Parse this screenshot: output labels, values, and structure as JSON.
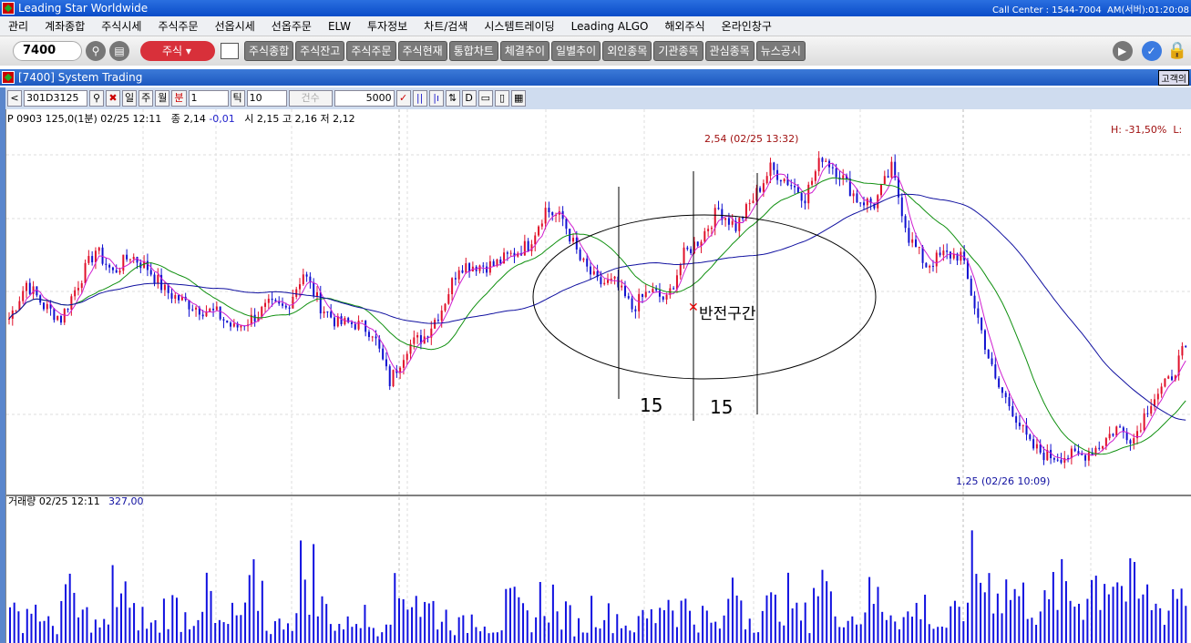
{
  "app": {
    "title": "Leading Star Worldwide",
    "call_center": "Call Center : 1544-7004  AM(서버):01:20:08"
  },
  "menu": [
    "관리",
    "계좌종합",
    "주식시세",
    "주식주문",
    "선옵시세",
    "선옵주문",
    "ELW",
    "투자정보",
    "차트/검색",
    "시스템트레이딩",
    "Leading ALGO",
    "해외주식",
    "온라인창구"
  ],
  "toolbar": {
    "screen_code": "7400",
    "market": "주식",
    "buttons": [
      "주식종합",
      "주식잔고",
      "주식주문",
      "주식현재",
      "통합차트",
      "체결추이",
      "일별추이",
      "외인종목",
      "기관종목",
      "관심종목",
      "뉴스공시"
    ]
  },
  "window": {
    "title": "[7400] System Trading",
    "customer_btn": "고객의"
  },
  "chart_toolbar": {
    "symbol": "301D3125",
    "periods": [
      "일",
      "주",
      "월",
      "분"
    ],
    "minute": "1",
    "tick_label": "틱",
    "tick": "10",
    "count_label": "건수",
    "count": "5000"
  },
  "info": {
    "name": "P 0903 125,0(1분) 02/25 12:11",
    "close": "종 2,14",
    "change": "-0,01",
    "rest": "시 2,15 고 2,16 저 2,12"
  },
  "labels": {
    "high": "2,54 (02/25 13:32)",
    "low": "1,25 (02/26 10:09)",
    "hl": "H: -31,50%  L:",
    "volume": "거래량 02/25 12:11",
    "volume_value": "327,00",
    "reversal": "반전구간",
    "span1": "15",
    "span2": "15"
  },
  "colors": {
    "up": "#e0102a",
    "down": "#1010d0",
    "ma5": "#d020d0",
    "ma20": "#109010",
    "ma60": "#1010a0",
    "volume": "#1010e0"
  },
  "chart_data": {
    "type": "candlestick",
    "ylim": [
      1.25,
      2.54
    ],
    "closes": [
      1.86,
      2.0,
      1.91,
      1.86,
      2.0,
      2.13,
      2.04,
      2.11,
      2.06,
      1.97,
      1.93,
      1.9,
      1.88,
      1.82,
      1.86,
      1.91,
      1.9,
      2.04,
      1.91,
      1.84,
      1.84,
      1.81,
      1.61,
      1.75,
      1.79,
      1.9,
      2.07,
      2.07,
      2.07,
      2.11,
      2.15,
      2.29,
      2.25,
      2.09,
      2.0,
      2.0,
      1.9,
      1.97,
      1.93,
      2.11,
      2.18,
      2.29,
      2.22,
      2.33,
      2.45,
      2.4,
      2.34,
      2.5,
      2.43,
      2.33,
      2.31,
      2.45,
      2.18,
      2.07,
      2.11,
      2.11,
      1.86,
      1.61,
      1.5,
      1.36,
      1.32,
      1.32,
      1.32,
      1.36,
      1.43,
      1.39,
      1.54,
      1.61,
      1.75
    ],
    "volume": [
      3,
      4,
      2,
      5,
      3,
      2,
      6,
      3,
      2,
      4,
      3,
      5,
      2,
      3,
      6,
      2,
      3,
      8,
      4,
      2,
      3,
      2,
      5,
      6,
      4,
      3,
      2,
      3,
      2,
      4,
      3,
      5,
      3,
      2,
      4,
      3,
      2,
      3,
      5,
      4,
      3,
      2,
      6,
      3,
      4,
      5,
      3,
      7,
      4,
      3,
      5,
      4,
      3,
      4,
      2,
      3,
      8,
      7,
      6,
      5,
      4,
      6,
      5,
      7,
      8,
      6,
      5,
      4,
      6
    ]
  }
}
